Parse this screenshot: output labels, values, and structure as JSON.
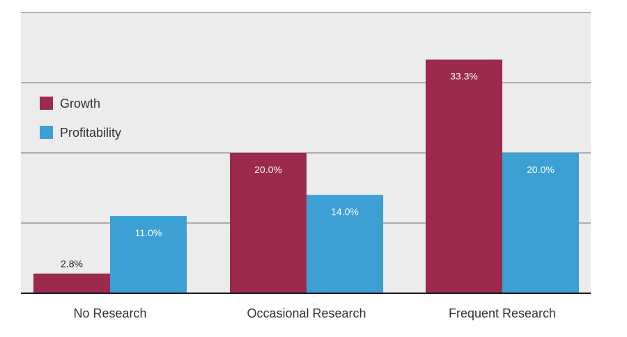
{
  "chart_data": {
    "type": "bar",
    "title": "",
    "xlabel": "",
    "ylabel": "",
    "categories": [
      "No Research",
      "Occasional Research",
      "Frequent Research"
    ],
    "series": [
      {
        "name": "Growth",
        "values": [
          2.8,
          20.0,
          33.3
        ],
        "labels": [
          "2.8%",
          "20.0%",
          "33.3%"
        ],
        "color": "#9c2a4c"
      },
      {
        "name": "Profitability",
        "values": [
          11.0,
          14.0,
          20.0
        ],
        "labels": [
          "11.0%",
          "14.0%",
          "20.0%"
        ],
        "color": "#3ca0d4"
      }
    ],
    "ylim": [
      0,
      40
    ],
    "grid": true,
    "legend_position": "top-left",
    "colors": {
      "background": "#ececec",
      "gridline": "#9a9a9a",
      "axis": "#1a1a1a"
    }
  }
}
